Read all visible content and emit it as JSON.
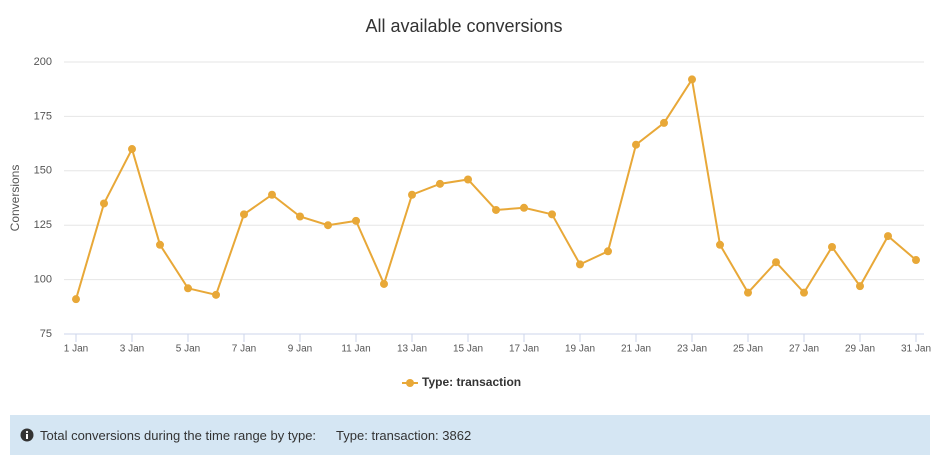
{
  "chart_data": {
    "type": "line",
    "title": "All available conversions",
    "y_label": "Conversions",
    "categories": [
      "1 Jan",
      null,
      "3 Jan",
      null,
      "5 Jan",
      null,
      "7 Jan",
      null,
      "9 Jan",
      null,
      "11 Jan",
      null,
      "13 Jan",
      null,
      "15 Jan",
      null,
      "17 Jan",
      null,
      "19 Jan",
      null,
      "21 Jan",
      null,
      "23 Jan",
      null,
      "25 Jan",
      null,
      "27 Jan",
      null,
      "29 Jan",
      null,
      "31 Jan"
    ],
    "series": [
      {
        "name": "Type: transaction",
        "color": "#e8a838",
        "values": [
          91,
          135,
          160,
          116,
          96,
          93,
          130,
          139,
          129,
          125,
          127,
          98,
          139,
          144,
          146,
          132,
          133,
          130,
          107,
          113,
          162,
          172,
          192,
          116,
          94,
          108,
          94,
          115,
          97,
          120,
          109
        ]
      }
    ],
    "ylim": [
      75,
      200
    ],
    "yticks": [
      75,
      100,
      125,
      150,
      175,
      200
    ],
    "grid": true
  },
  "footer": {
    "label": "Total conversions during the time range by type:",
    "value": "Type: transaction: 3862"
  }
}
